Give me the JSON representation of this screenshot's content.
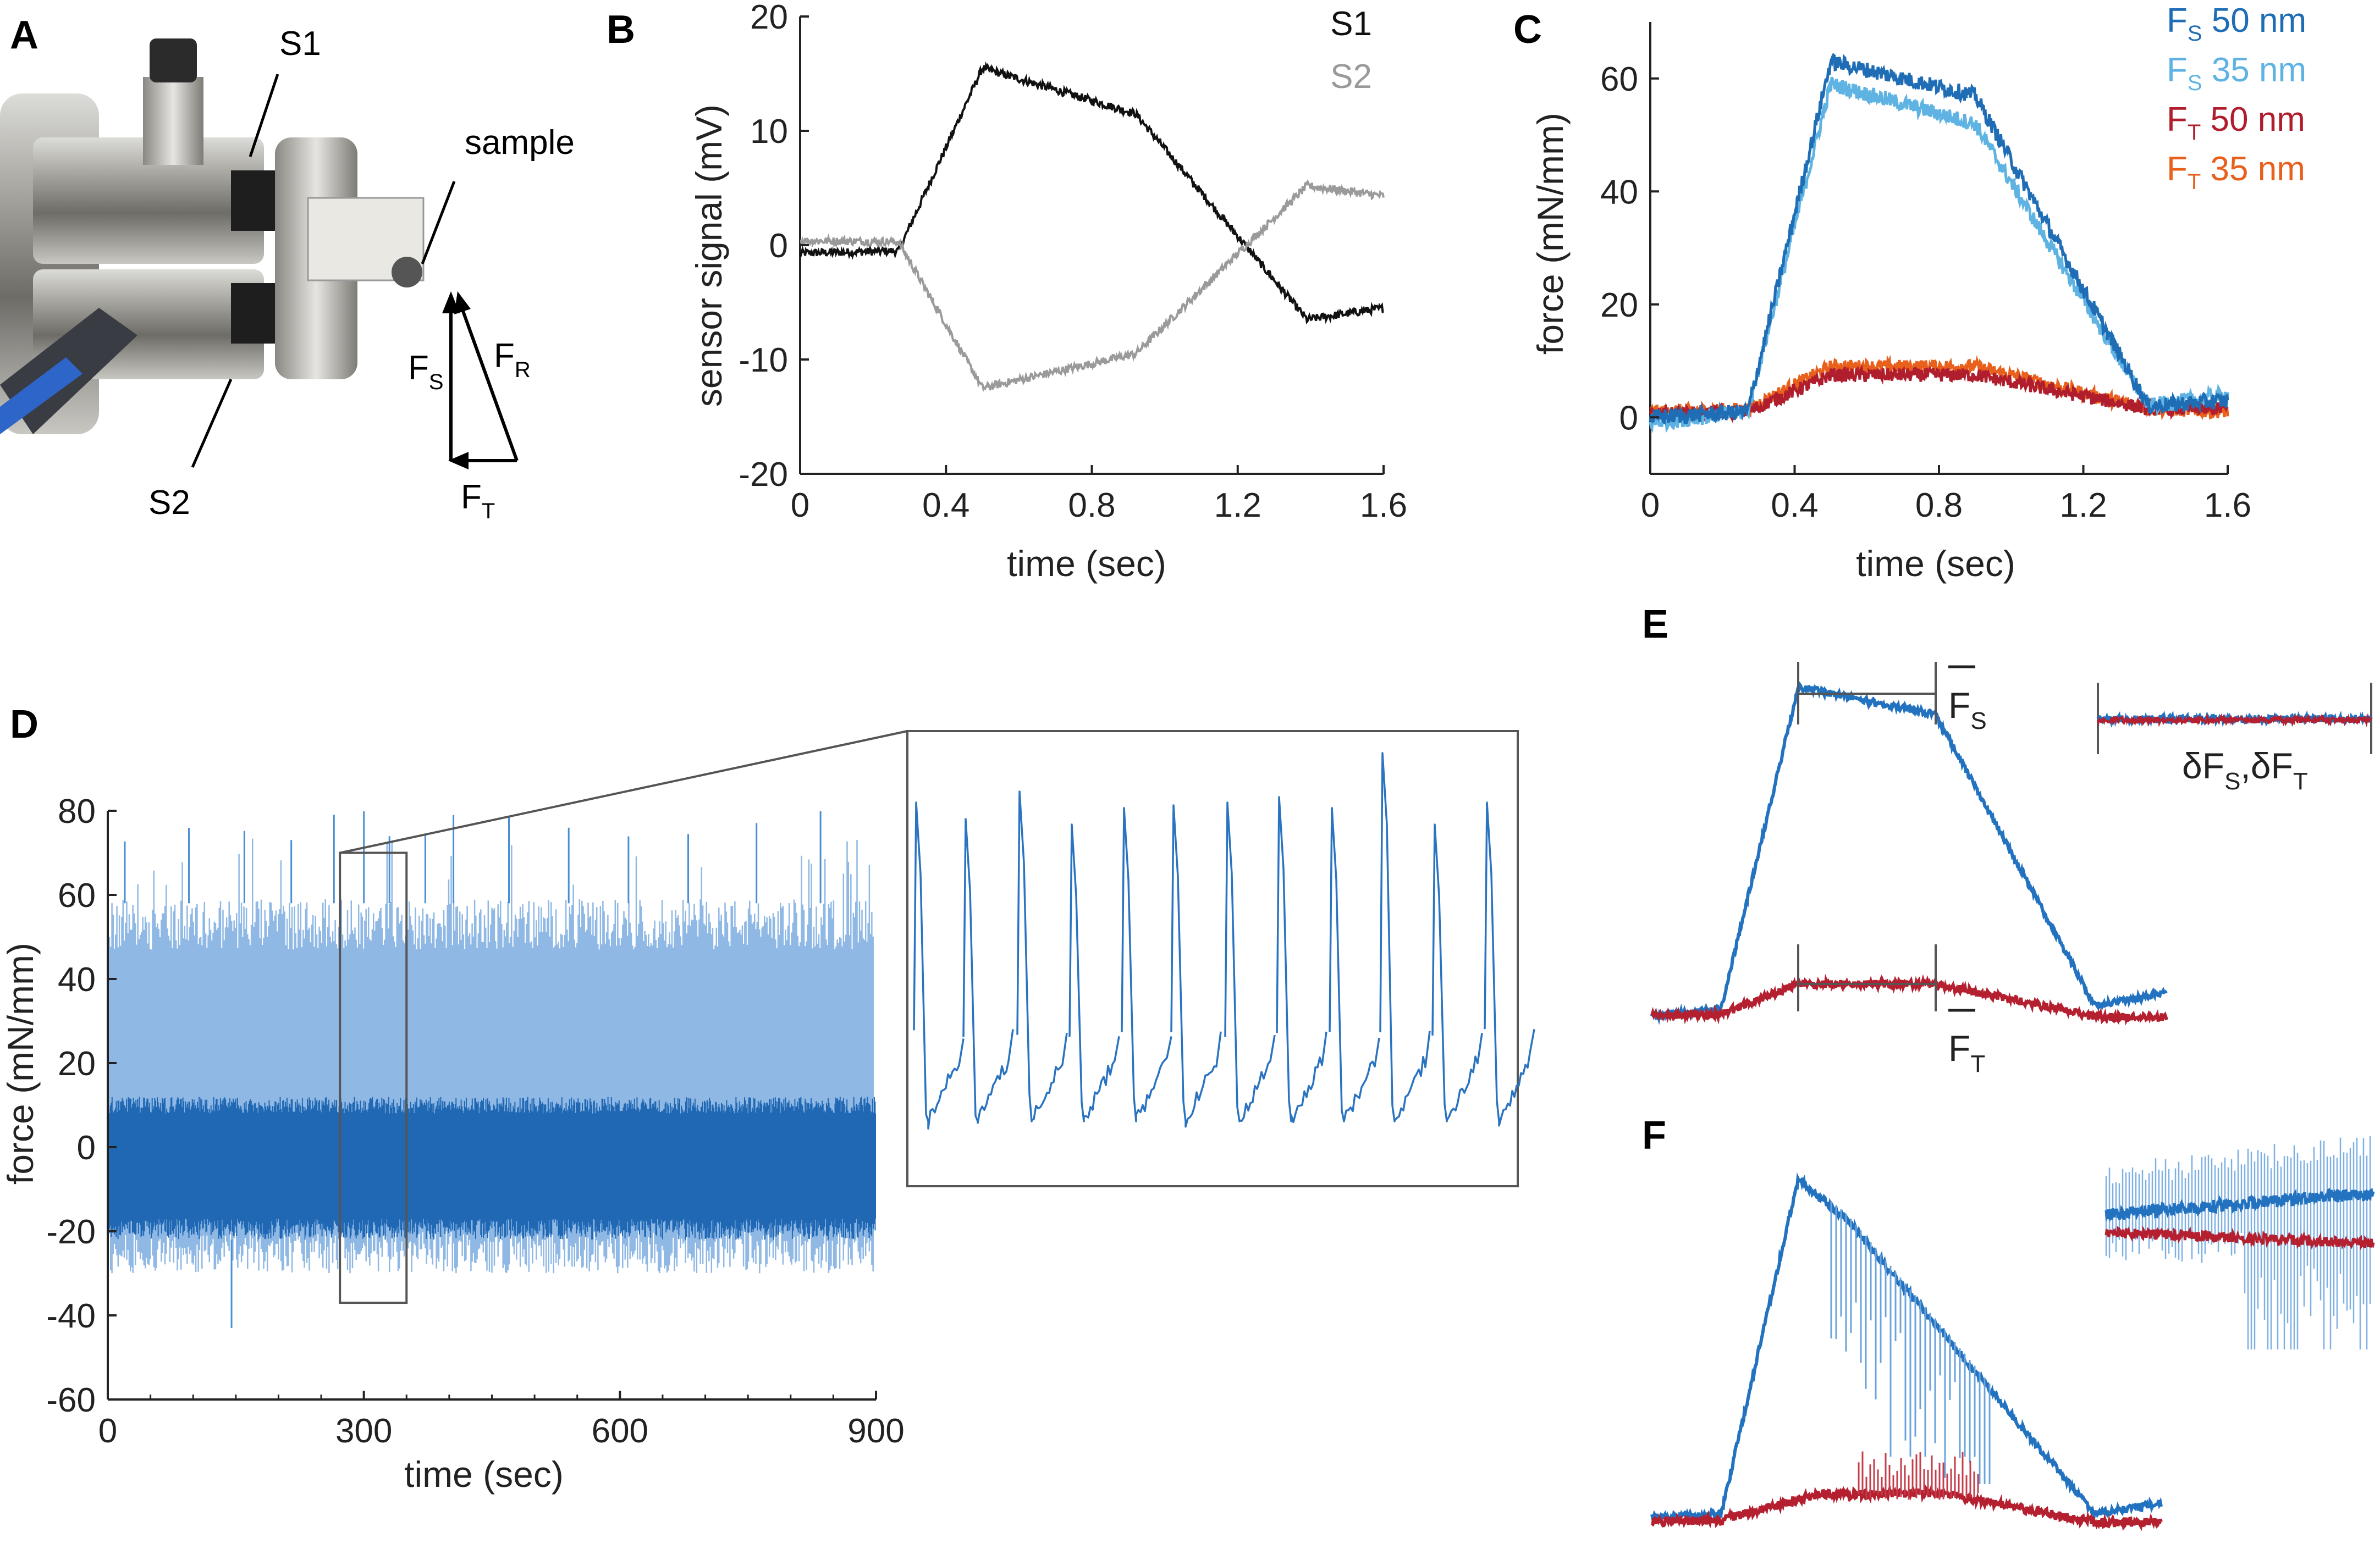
{
  "panels": {
    "a": {
      "letter": "A",
      "labels": {
        "s1": "S1",
        "s2": "S2",
        "sample": "sample",
        "fs": "F",
        "fs_sub": "S",
        "fr": "F",
        "fr_sub": "R",
        "ft": "F",
        "ft_sub": "T"
      }
    },
    "b": {
      "letter": "B",
      "ylabel": "sensor signal (mV)",
      "xlabel": "time (sec)",
      "yticks": [
        "20",
        "10",
        "0",
        "-10",
        "-20"
      ],
      "xticks": [
        "0",
        "0.4",
        "0.8",
        "1.2",
        "1.6"
      ],
      "legend": [
        "S1",
        "S2"
      ]
    },
    "c": {
      "letter": "C",
      "ylabel": "force (mN/mm)",
      "xlabel": "time (sec)",
      "yticks": [
        "60",
        "40",
        "20",
        "0"
      ],
      "xticks": [
        "0",
        "0.4",
        "0.8",
        "1.2",
        "1.6"
      ],
      "legend": [
        {
          "main": "F",
          "sub": "S",
          "rest": " 50 nm"
        },
        {
          "main": "F",
          "sub": "S",
          "rest": " 35 nm"
        },
        {
          "main": "F",
          "sub": "T",
          "rest": " 50 nm"
        },
        {
          "main": "F",
          "sub": "T",
          "rest": " 35 nm"
        }
      ]
    },
    "d": {
      "letter": "D",
      "ylabel": "force (mN/mm)",
      "xlabel": "time (sec)",
      "yticks": [
        "80",
        "60",
        "40",
        "20",
        "0",
        "-20",
        "-40",
        "-60"
      ],
      "xticks": [
        "0",
        "300",
        "600",
        "900"
      ]
    },
    "e": {
      "letter": "E",
      "fs_label": {
        "main": "F",
        "sub": "S"
      },
      "ft_label": {
        "main": "F",
        "sub": "T"
      },
      "delta_label": {
        "a": "δF",
        "a_sub": "S",
        "comma": ",",
        "b": "δF",
        "b_sub": "T"
      }
    },
    "f": {
      "letter": "F"
    }
  },
  "colors": {
    "s1": "#111111",
    "s2": "#9a9a9a",
    "fs50": "#1f6db5",
    "fs35": "#5fb3e3",
    "ft50": "#b01e2e",
    "ft35": "#e8601c",
    "blue": "#2272c0",
    "red": "#b4202f"
  },
  "chart_data": [
    {
      "panel": "B",
      "type": "line",
      "xlabel": "time (sec)",
      "ylabel": "sensor signal (mV)",
      "xlim": [
        0,
        1.6
      ],
      "ylim": [
        -20,
        20
      ],
      "series": [
        {
          "name": "S1",
          "x": [
            0,
            0.27,
            0.5,
            0.92,
            1.39,
            1.6
          ],
          "y": [
            -0.7,
            -0.5,
            15.5,
            11.5,
            -6.5,
            -5.5
          ]
        },
        {
          "name": "S2",
          "x": [
            0,
            0.27,
            0.5,
            0.92,
            1.39,
            1.6
          ],
          "y": [
            0.4,
            0.3,
            -12.5,
            -9.5,
            5.2,
            4.3
          ]
        }
      ]
    },
    {
      "panel": "C",
      "type": "line",
      "xlabel": "time (sec)",
      "ylabel": "force (mN/mm)",
      "xlim": [
        0,
        1.6
      ],
      "ylim": [
        -10,
        70
      ],
      "series": [
        {
          "name": "FS 50 nm",
          "x": [
            0,
            0.27,
            0.5,
            0.9,
            1.38,
            1.6
          ],
          "y": [
            0,
            1,
            63,
            57,
            2,
            3
          ]
        },
        {
          "name": "FS 35 nm",
          "x": [
            0,
            0.27,
            0.5,
            0.9,
            1.38,
            1.6
          ],
          "y": [
            -1,
            1,
            59,
            52,
            2,
            4
          ]
        },
        {
          "name": "FT 50 nm",
          "x": [
            0,
            0.27,
            0.5,
            0.9,
            1.38,
            1.6
          ],
          "y": [
            0.5,
            1,
            7.5,
            7.5,
            1.5,
            1.5
          ]
        },
        {
          "name": "FT 35 nm",
          "x": [
            0,
            0.27,
            0.5,
            0.9,
            1.38,
            1.6
          ],
          "y": [
            1,
            1.5,
            9,
            9,
            1.5,
            1
          ]
        }
      ]
    },
    {
      "panel": "D",
      "type": "line",
      "xlabel": "time (sec)",
      "ylabel": "force (mN/mm)",
      "xlim": [
        0,
        900
      ],
      "ylim": [
        -60,
        80
      ],
      "series": [
        {
          "name": "force",
          "envelope_upper": 58,
          "envelope_lower": -25,
          "dense_band": [
            -17,
            8
          ],
          "spike_max": 76,
          "spike_min": -43,
          "zoom_window": [
            272,
            350
          ]
        }
      ]
    }
  ]
}
